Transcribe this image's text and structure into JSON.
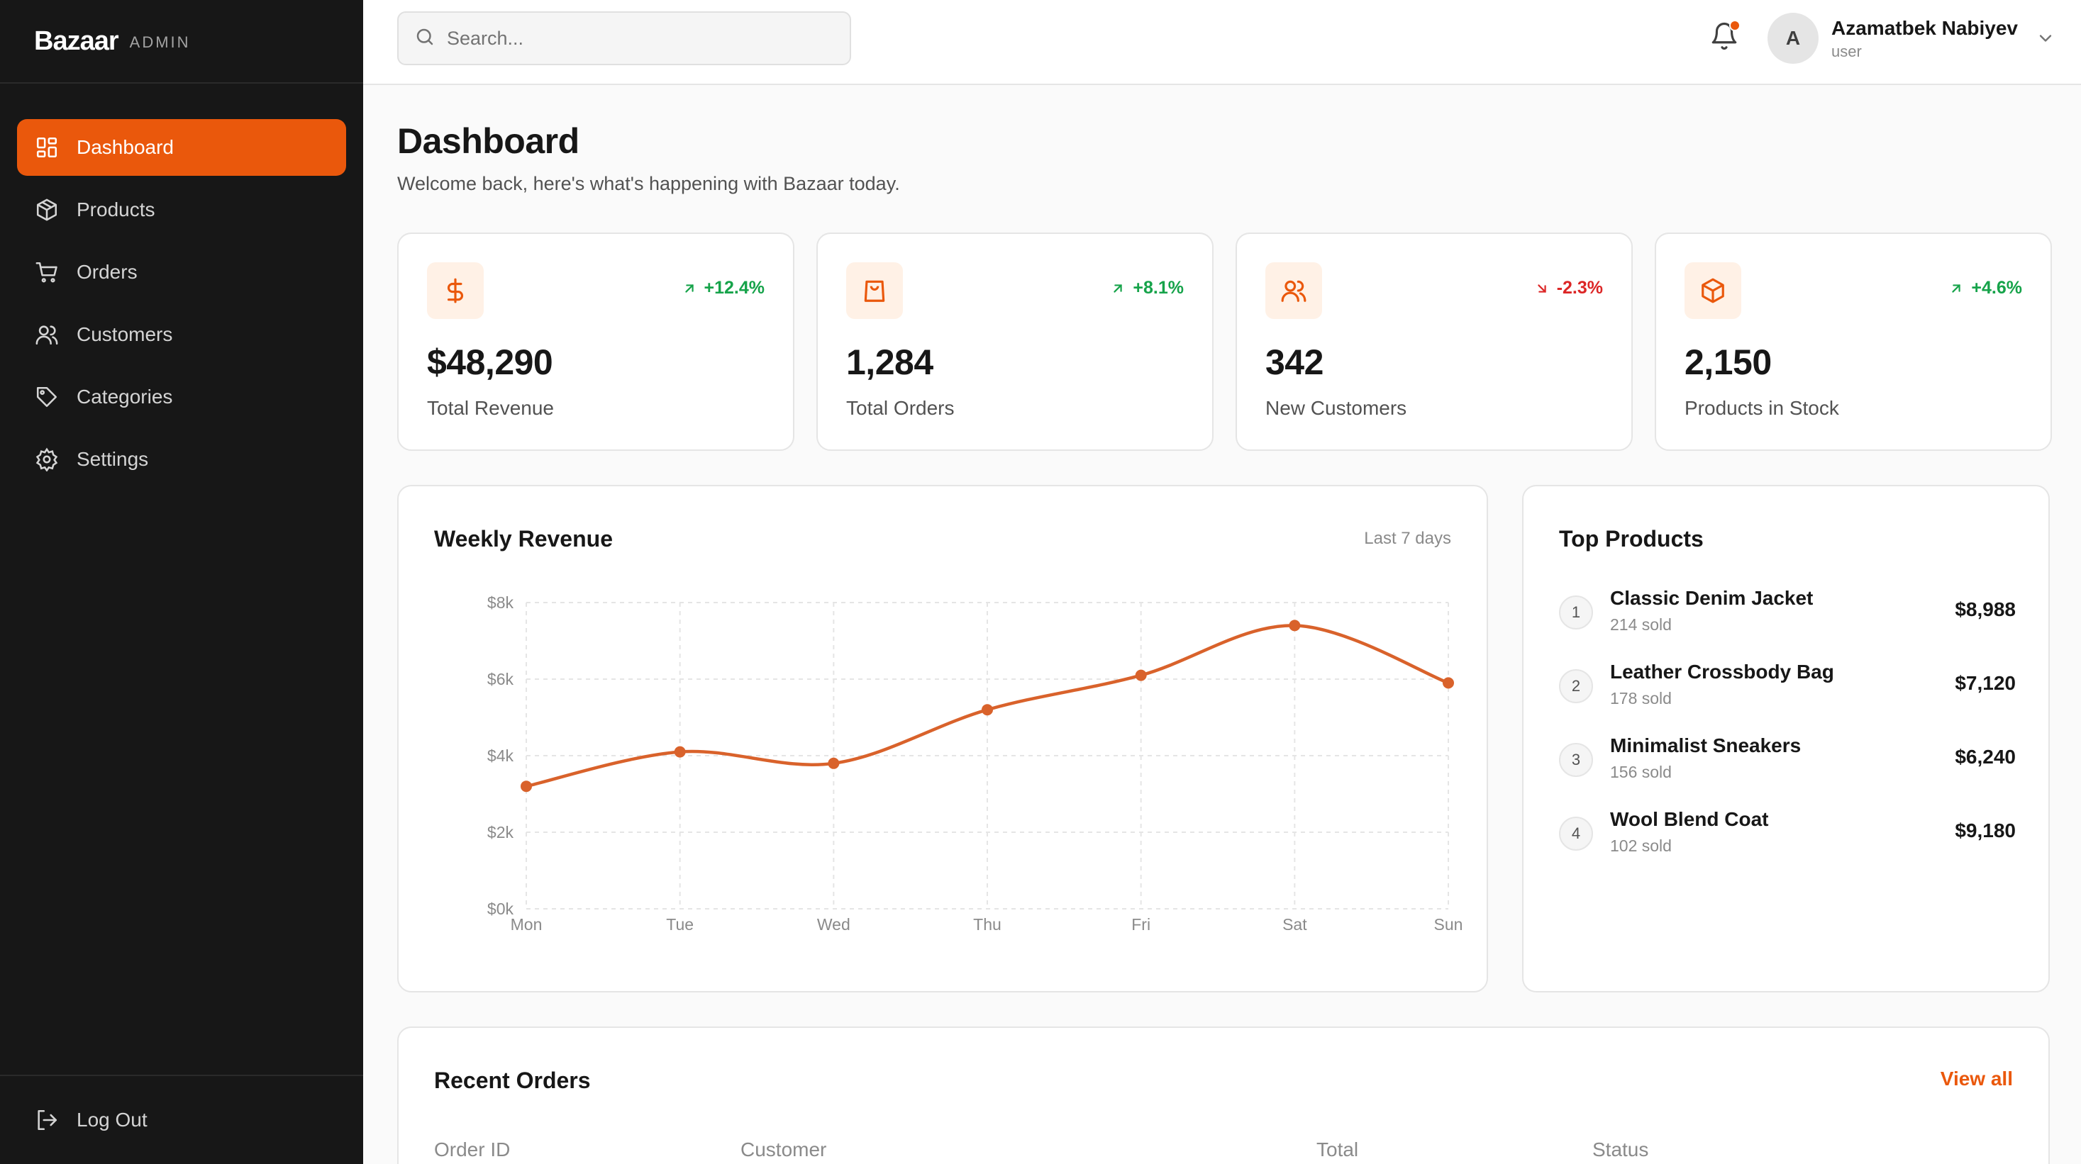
{
  "brand": {
    "name": "Bazaar",
    "tag": "ADMIN"
  },
  "nav": {
    "items": [
      {
        "label": "Dashboard",
        "icon": "dashboard-icon",
        "active": true
      },
      {
        "label": "Products",
        "icon": "package-icon"
      },
      {
        "label": "Orders",
        "icon": "cart-icon"
      },
      {
        "label": "Customers",
        "icon": "users-icon"
      },
      {
        "label": "Categories",
        "icon": "tag-icon"
      },
      {
        "label": "Settings",
        "icon": "gear-icon"
      }
    ],
    "logout": "Log Out"
  },
  "header": {
    "search_placeholder": "Search...",
    "user": {
      "initial": "A",
      "name": "Azamatbek Nabiyev",
      "role": "user"
    }
  },
  "page": {
    "title": "Dashboard",
    "subtitle": "Welcome back, here's what's happening with Bazaar today."
  },
  "stats": [
    {
      "value": "$48,290",
      "label": "Total Revenue",
      "change": "+12.4%",
      "trend": "up",
      "icon": "dollar-icon"
    },
    {
      "value": "1,284",
      "label": "Total Orders",
      "change": "+8.1%",
      "trend": "up",
      "icon": "shopping-bag-icon"
    },
    {
      "value": "342",
      "label": "New Customers",
      "change": "-2.3%",
      "trend": "down",
      "icon": "users-icon"
    },
    {
      "value": "2,150",
      "label": "Products in Stock",
      "change": "+4.6%",
      "trend": "up",
      "icon": "package-icon"
    }
  ],
  "weekly_revenue": {
    "title": "Weekly Revenue",
    "range_label": "Last 7 days"
  },
  "chart_data": {
    "type": "line",
    "title": "Weekly Revenue",
    "categories": [
      "Mon",
      "Tue",
      "Wed",
      "Thu",
      "Fri",
      "Sat",
      "Sun"
    ],
    "values": [
      3200,
      4100,
      3800,
      5200,
      6100,
      7400,
      5900
    ],
    "y_ticks": [
      "$0k",
      "$2k",
      "$4k",
      "$6k",
      "$8k"
    ],
    "ylim": [
      0,
      8000
    ],
    "grid": true,
    "line_color": "#d9622b"
  },
  "top_products": {
    "title": "Top Products",
    "items": [
      {
        "rank": "1",
        "name": "Classic Denim Jacket",
        "sold": "214 sold",
        "price": "$8,988"
      },
      {
        "rank": "2",
        "name": "Leather Crossbody Bag",
        "sold": "178 sold",
        "price": "$7,120"
      },
      {
        "rank": "3",
        "name": "Minimalist Sneakers",
        "sold": "156 sold",
        "price": "$6,240"
      },
      {
        "rank": "4",
        "name": "Wool Blend Coat",
        "sold": "102 sold",
        "price": "$9,180"
      }
    ]
  },
  "recent_orders": {
    "title": "Recent Orders",
    "view_all": "View all",
    "columns": [
      "Order ID",
      "Customer",
      "Total",
      "Status"
    ]
  },
  "colors": {
    "accent": "#ea580c",
    "sidebar_bg": "#171717",
    "positive": "#16a34a",
    "negative": "#dc2626"
  }
}
